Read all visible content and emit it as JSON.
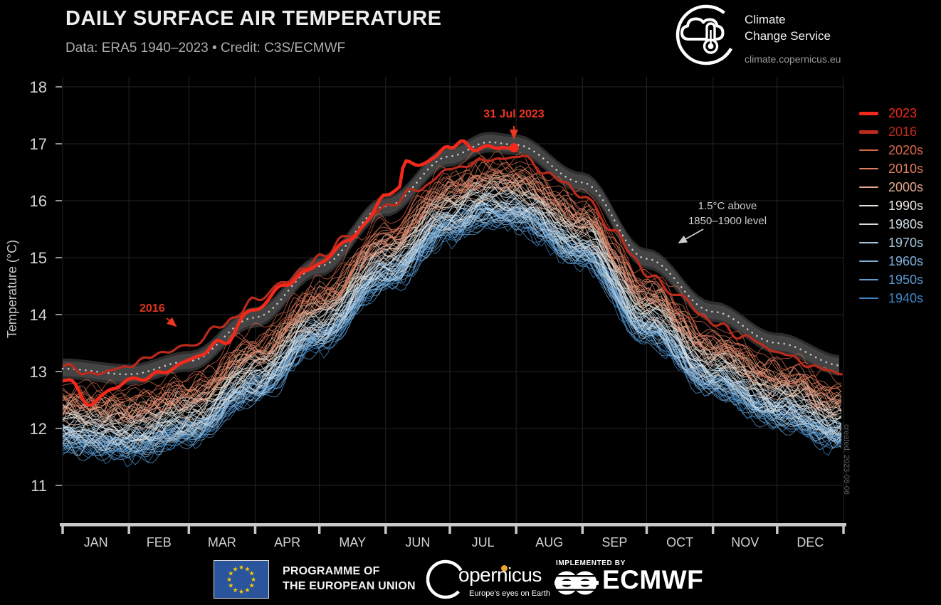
{
  "header": {
    "title": "DAILY SURFACE AIR TEMPERATURE",
    "subtitle": "Data: ERA5 1940–2023 • Credit: C3S/ECMWF"
  },
  "c3s_logo": {
    "name_line1": "Climate",
    "name_line2": "Change Service",
    "url": "climate.copernicus.eu"
  },
  "chart_data": {
    "type": "line",
    "title": "DAILY SURFACE AIR TEMPERATURE",
    "subtitle": "Data: ERA5 1940–2023 • Credit: C3S/ECMWF",
    "xlabel": "",
    "ylabel": "Temperature (°C)",
    "x_axis": "day of year, Jan–Dec",
    "ylim": [
      11,
      18
    ],
    "yticks": [
      11,
      12,
      13,
      14,
      15,
      16,
      17,
      18
    ],
    "grid": true,
    "legend_position": "right",
    "months": [
      "JAN",
      "FEB",
      "MAR",
      "APR",
      "MAY",
      "JUN",
      "JUL",
      "AUG",
      "SEP",
      "OCT",
      "NOV",
      "DEC"
    ],
    "month_start_days": [
      0,
      31,
      59,
      90,
      120,
      151,
      181,
      212,
      243,
      273,
      304,
      334,
      365
    ],
    "band": {
      "label_line1": "1.5°C above",
      "label_line2": "1850–1900 level",
      "description": "Seasonal cycle 1.5°C above the 1850–1900 pre-industrial level, shown as grey band with dotted centre line",
      "half_width_degC": 0.13,
      "center_points": [
        [
          0,
          13.05
        ],
        [
          31,
          12.95
        ],
        [
          59,
          13.18
        ],
        [
          90,
          13.95
        ],
        [
          120,
          14.85
        ],
        [
          151,
          15.9
        ],
        [
          181,
          16.78
        ],
        [
          199,
          17.03
        ],
        [
          212,
          16.98
        ],
        [
          243,
          16.32
        ],
        [
          273,
          14.98
        ],
        [
          304,
          14.05
        ],
        [
          334,
          13.5
        ],
        [
          365,
          13.1
        ]
      ]
    },
    "series": [
      {
        "name": "2023",
        "color": "#f3291b",
        "line_width": "bold",
        "end_point": {
          "day": 211,
          "value": 16.93,
          "label": "31 Jul 2023"
        },
        "points": [
          [
            0,
            12.9
          ],
          [
            13,
            12.45
          ],
          [
            24,
            12.7
          ],
          [
            31,
            12.85
          ],
          [
            45,
            12.95
          ],
          [
            59,
            13.2
          ],
          [
            74,
            13.5
          ],
          [
            90,
            14.1
          ],
          [
            105,
            14.55
          ],
          [
            120,
            14.9
          ],
          [
            135,
            15.35
          ],
          [
            151,
            16.05
          ],
          [
            157,
            16.25
          ],
          [
            160,
            16.7
          ],
          [
            166,
            16.6
          ],
          [
            174,
            16.78
          ],
          [
            181,
            16.95
          ],
          [
            186,
            17.05
          ],
          [
            192,
            16.88
          ],
          [
            199,
            16.98
          ],
          [
            205,
            16.9
          ],
          [
            211,
            16.93
          ]
        ]
      },
      {
        "name": "2016",
        "color": "#bb2a1d",
        "line_width": "bold",
        "points": [
          [
            0,
            13.1
          ],
          [
            15,
            12.95
          ],
          [
            31,
            13.1
          ],
          [
            45,
            13.32
          ],
          [
            59,
            13.45
          ],
          [
            75,
            13.82
          ],
          [
            90,
            14.25
          ],
          [
            105,
            14.6
          ],
          [
            120,
            15.0
          ],
          [
            135,
            15.42
          ],
          [
            151,
            15.9
          ],
          [
            166,
            16.2
          ],
          [
            181,
            16.55
          ],
          [
            196,
            16.7
          ],
          [
            214,
            16.78
          ],
          [
            228,
            16.45
          ],
          [
            243,
            16.1
          ],
          [
            258,
            15.45
          ],
          [
            273,
            14.72
          ],
          [
            289,
            14.3
          ],
          [
            304,
            13.85
          ],
          [
            319,
            13.6
          ],
          [
            334,
            13.35
          ],
          [
            350,
            13.1
          ],
          [
            365,
            12.95
          ]
        ]
      }
    ],
    "decade_groups": [
      {
        "name": "1940s",
        "color": "#3f86c4",
        "line_count": 10,
        "offset_above_1850_1900": 0.22
      },
      {
        "name": "1950s",
        "color": "#5d9bd1",
        "line_count": 10,
        "offset_above_1850_1900": 0.24
      },
      {
        "name": "1960s",
        "color": "#7fb0d8",
        "line_count": 10,
        "offset_above_1850_1900": 0.27
      },
      {
        "name": "1970s",
        "color": "#a5c6dd",
        "line_count": 10,
        "offset_above_1850_1900": 0.33
      },
      {
        "name": "1980s",
        "color": "#d6dde3",
        "line_count": 10,
        "offset_above_1850_1900": 0.48
      },
      {
        "name": "1990s",
        "color": "#e9e4dc",
        "line_count": 10,
        "offset_above_1850_1900": 0.62
      },
      {
        "name": "2000s",
        "color": "#e2a88f",
        "line_count": 10,
        "offset_above_1850_1900": 0.78
      },
      {
        "name": "2010s",
        "color": "#de7e5f",
        "line_count": 9,
        "offset_above_1850_1900": 0.96
      },
      {
        "name": "2020s",
        "color": "#d9654a",
        "line_count": 3,
        "offset_above_1850_1900": 1.1
      }
    ],
    "annotations": {
      "point_label": "31 Jul 2023",
      "early_label": "2016",
      "band_label_line1": "1.5°C above",
      "band_label_line2": "1850–1900 level",
      "created": "created: 2023-08-06"
    }
  },
  "legend_items": [
    {
      "label": "2023",
      "color": "#f3291b",
      "thick": true
    },
    {
      "label": "2016",
      "color": "#bb2a1d",
      "thick": true
    },
    {
      "label": "2020s",
      "color": "#d9654a",
      "thick": false
    },
    {
      "label": "2010s",
      "color": "#de7e5f",
      "thick": false
    },
    {
      "label": "2000s",
      "color": "#e2a88f",
      "thick": false
    },
    {
      "label": "1990s",
      "color": "#e9e4dc",
      "thick": false
    },
    {
      "label": "1980s",
      "color": "#d6dde3",
      "thick": false
    },
    {
      "label": "1970s",
      "color": "#a5c6dd",
      "thick": false
    },
    {
      "label": "1960s",
      "color": "#7fb0d8",
      "thick": false
    },
    {
      "label": "1950s",
      "color": "#5d9bd1",
      "thick": false
    },
    {
      "label": "1940s",
      "color": "#3f86c4",
      "thick": false
    }
  ],
  "footer": {
    "eu_line1": "PROGRAMME OF",
    "eu_line2": "THE EUROPEAN UNION",
    "copernicus_word": "opernicus",
    "copernicus_tagline": "Europe's eyes on Earth",
    "implemented_by": "IMPLEMENTED BY",
    "ecmwf": "ECMWF"
  }
}
